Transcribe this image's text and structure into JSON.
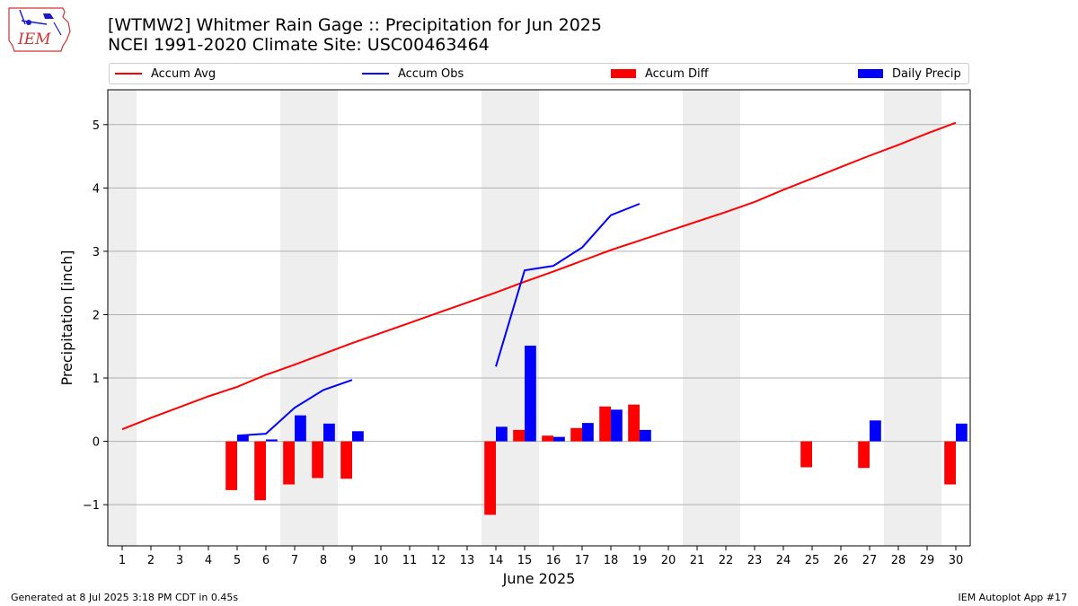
{
  "header": {
    "title_line1": "[WTMW2] Whitmer Rain Gage :: Precipitation for Jun 2025",
    "title_line2": "NCEI 1991-2020 Climate Site: USC00463464"
  },
  "logo": {
    "text": "IEM",
    "icon": "iem-iowa-logo"
  },
  "footer": {
    "left": "Generated at 8 Jul 2025 3:18 PM CDT in 0.45s",
    "right": "IEM Autoplot App #17"
  },
  "colors": {
    "avg": "#ff0000",
    "obs": "#0000ff",
    "diff": "#ff0000",
    "daily": "#0000ff",
    "weekend": "#eeeeee",
    "grid": "#b0b0b0"
  },
  "chart_data": {
    "type": "bar",
    "title": "[WTMW2] Whitmer Rain Gage :: Precipitation for Jun 2025",
    "subtitle": "NCEI 1991-2020 Climate Site: USC00463464",
    "xlabel": "June 2025",
    "ylabel": "Precipitation [inch]",
    "xlim": [
      0.5,
      30.5
    ],
    "ylim": [
      -1.65,
      5.55
    ],
    "x_ticks": [
      1,
      2,
      3,
      4,
      5,
      6,
      7,
      8,
      9,
      10,
      11,
      12,
      13,
      14,
      15,
      16,
      17,
      18,
      19,
      20,
      21,
      22,
      23,
      24,
      25,
      26,
      27,
      28,
      29,
      30
    ],
    "y_ticks": [
      -1,
      0,
      1,
      2,
      3,
      4,
      5
    ],
    "grid": "horizontal",
    "legend_position": "top",
    "shaded_days": [
      1,
      7,
      8,
      14,
      15,
      21,
      22,
      28,
      29
    ],
    "series": [
      {
        "name": "Accum Avg",
        "kind": "line",
        "x": [
          1,
          2,
          3,
          4,
          5,
          6,
          7,
          8,
          9,
          10,
          11,
          12,
          13,
          14,
          15,
          16,
          17,
          18,
          19,
          20,
          21,
          22,
          23,
          24,
          25,
          26,
          27,
          28,
          29,
          30
        ],
        "values": [
          0.19,
          0.37,
          0.54,
          0.71,
          0.86,
          1.05,
          1.21,
          1.38,
          1.55,
          1.71,
          1.87,
          2.03,
          2.19,
          2.35,
          2.52,
          2.68,
          2.85,
          3.02,
          3.17,
          3.32,
          3.47,
          3.62,
          3.78,
          3.97,
          4.15,
          4.33,
          4.51,
          4.68,
          4.86,
          5.03
        ]
      },
      {
        "name": "Accum Obs",
        "kind": "line",
        "x": [
          5,
          6,
          7,
          8,
          9,
          14,
          15,
          16,
          17,
          18,
          19
        ],
        "values": [
          0.09,
          0.12,
          0.53,
          0.81,
          0.97,
          1.18,
          2.7,
          2.77,
          3.06,
          3.57,
          3.75
        ],
        "segments": [
          [
            5,
            6,
            7,
            8,
            9
          ],
          [
            14,
            15,
            16,
            17,
            18,
            19
          ]
        ]
      },
      {
        "name": "Accum Diff",
        "kind": "bar",
        "x": [
          5,
          6,
          7,
          8,
          9,
          14,
          15,
          16,
          17,
          18,
          19,
          25,
          27,
          30
        ],
        "values": [
          -0.77,
          -0.93,
          -0.68,
          -0.58,
          -0.59,
          -1.16,
          0.18,
          0.09,
          0.21,
          0.55,
          0.58,
          -0.41,
          -0.42,
          -0.68
        ]
      },
      {
        "name": "Daily Precip",
        "kind": "bar",
        "x": [
          5,
          6,
          7,
          8,
          9,
          14,
          15,
          16,
          17,
          18,
          19,
          27,
          30
        ],
        "values": [
          0.09,
          0.03,
          0.41,
          0.28,
          0.16,
          0.23,
          1.51,
          0.07,
          0.29,
          0.5,
          0.18,
          0.33,
          0.28
        ]
      }
    ]
  }
}
